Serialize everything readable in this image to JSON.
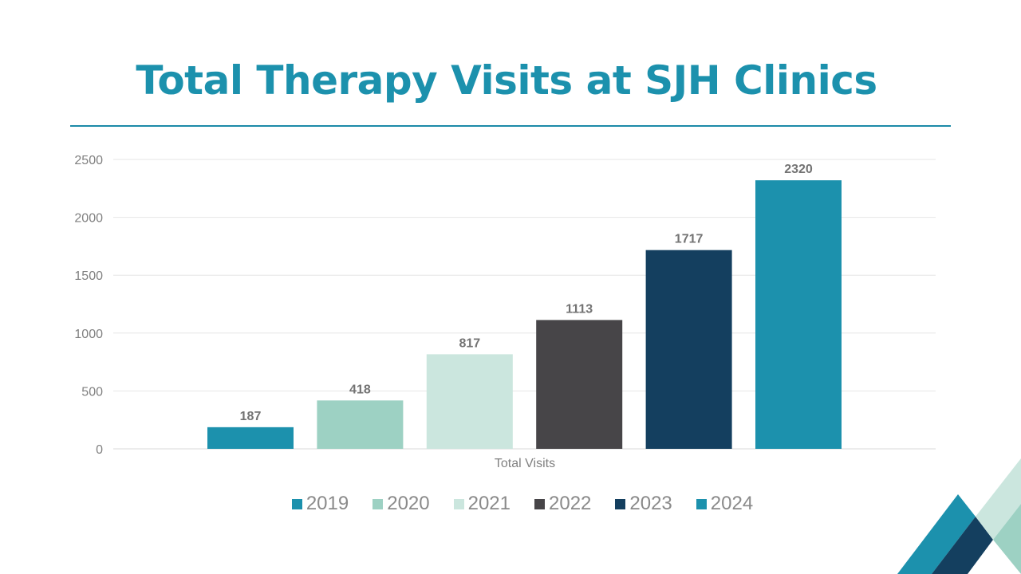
{
  "title": "Total Therapy Visits at SJH Clinics",
  "chart_data": {
    "type": "bar",
    "title": "",
    "categories": [
      "Total Visits"
    ],
    "series": [
      {
        "name": "2019",
        "values": [
          187
        ],
        "color": "#1c91ad"
      },
      {
        "name": "2020",
        "values": [
          418
        ],
        "color": "#9dd1c3"
      },
      {
        "name": "2021",
        "values": [
          817
        ],
        "color": "#cbe6de"
      },
      {
        "name": "2022",
        "values": [
          1113
        ],
        "color": "#474548"
      },
      {
        "name": "2023",
        "values": [
          1717
        ],
        "color": "#143f5f"
      },
      {
        "name": "2024",
        "values": [
          2320
        ],
        "color": "#1c91ad"
      }
    ],
    "yticks": [
      "0",
      "500",
      "1000",
      "1500",
      "2000",
      "2500"
    ],
    "ylim": [
      0,
      2500
    ],
    "xlabel": "",
    "ylabel": "",
    "grid": true,
    "legend": "bottom",
    "data_labels": true
  },
  "colors": {
    "accent": "#1c91ad",
    "navy": "#143f5f",
    "mint": "#9dd1c3",
    "light_mint": "#cbe6de"
  }
}
